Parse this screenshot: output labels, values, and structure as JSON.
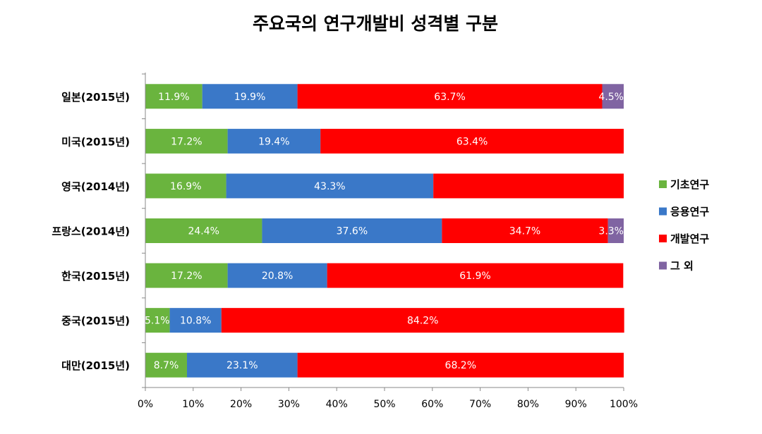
{
  "chart_data": {
    "type": "bar",
    "orientation": "horizontal",
    "stacked": true,
    "title": "주요국의 연구개발비 성격별 구분",
    "categories": [
      "일본(2015년)",
      "미국(2015년)",
      "영국(2014년)",
      "프랑스(2014년)",
      "한국(2015년)",
      "중국(2015년)",
      "대만(2015년)"
    ],
    "series": [
      {
        "name": "기초연구",
        "color": "#6ab43e",
        "values": [
          11.9,
          17.2,
          16.9,
          24.4,
          17.2,
          5.1,
          8.7
        ],
        "labels": [
          "11.9%",
          "17.2%",
          "16.9%",
          "24.4%",
          "17.2%",
          "5.1%",
          "8.7%"
        ]
      },
      {
        "name": "응용연구",
        "color": "#3a78c8",
        "values": [
          19.9,
          19.4,
          43.3,
          37.6,
          20.8,
          10.8,
          23.1
        ],
        "labels": [
          "19.9%",
          "19.4%",
          "43.3%",
          "37.6%",
          "20.8%",
          "10.8%",
          "23.1%"
        ]
      },
      {
        "name": "개발연구",
        "color": "#ff0000",
        "values": [
          63.7,
          63.4,
          39.8,
          34.7,
          61.9,
          84.2,
          68.2
        ],
        "labels": [
          "63.7%",
          "63.4%",
          "",
          "34.7%",
          "61.9%",
          "84.2%",
          "68.2%"
        ]
      },
      {
        "name": "그 외",
        "color": "#8064a2",
        "values": [
          4.5,
          0,
          0,
          3.3,
          0,
          0,
          0
        ],
        "labels": [
          "4.5%",
          "",
          "",
          "3.3%",
          "",
          "",
          ""
        ]
      }
    ],
    "xlim": [
      0,
      100
    ],
    "xticks": [
      "0%",
      "10%",
      "20%",
      "30%",
      "40%",
      "50%",
      "60%",
      "70%",
      "80%",
      "90%",
      "100%"
    ],
    "xlabel": "",
    "ylabel": "",
    "grid": false,
    "legend_position": "right"
  }
}
